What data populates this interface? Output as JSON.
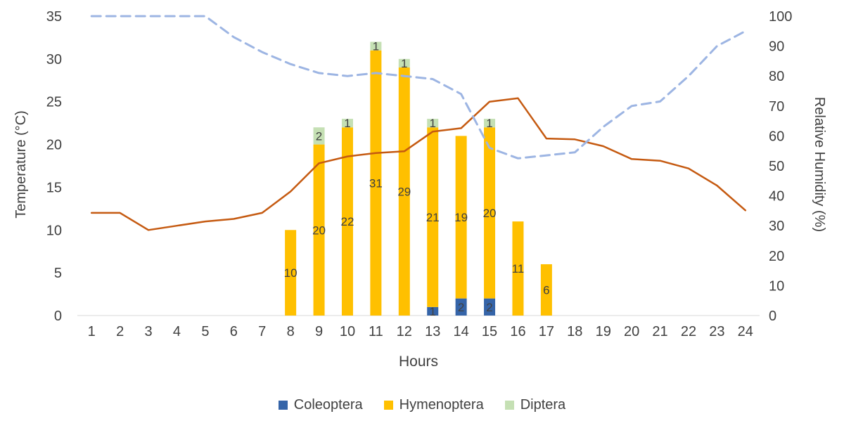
{
  "chart_data": {
    "type": "combo-stacked-bar-line",
    "x": [
      1,
      2,
      3,
      4,
      5,
      6,
      7,
      8,
      9,
      10,
      11,
      12,
      13,
      14,
      15,
      16,
      17,
      18,
      19,
      20,
      21,
      22,
      23,
      24
    ],
    "x_axis": {
      "label": "Hours"
    },
    "left_axis": {
      "label": "Temperature (°C)",
      "min": 0,
      "max": 35,
      "step": 5,
      "ticks": [
        0,
        5,
        10,
        15,
        20,
        25,
        30,
        35
      ]
    },
    "right_axis": {
      "label": "Relative Humidity (%)",
      "min": 0,
      "max": 100,
      "step": 10,
      "ticks": [
        0,
        10,
        20,
        30,
        40,
        50,
        60,
        70,
        80,
        90,
        100
      ]
    },
    "legend_position": "bottom",
    "grid": false,
    "bar_series": [
      {
        "name": "Coleoptera",
        "color": "#3564A8",
        "values": [
          0,
          0,
          0,
          0,
          0,
          0,
          0,
          0,
          0,
          0,
          0,
          0,
          1,
          2,
          2,
          0,
          0,
          0,
          0,
          0,
          0,
          0,
          0,
          0
        ]
      },
      {
        "name": "Hymenoptera",
        "color": "#FFC000",
        "values": [
          0,
          0,
          0,
          0,
          0,
          0,
          0,
          10,
          20,
          22,
          31,
          29,
          21,
          19,
          20,
          11,
          6,
          0,
          0,
          0,
          0,
          0,
          0,
          0
        ]
      },
      {
        "name": "Diptera",
        "color": "#C5E0B4",
        "values": [
          0,
          0,
          0,
          0,
          0,
          0,
          0,
          0,
          2,
          1,
          1,
          1,
          1,
          0,
          1,
          0,
          0,
          0,
          0,
          0,
          0,
          0,
          0,
          0
        ]
      }
    ],
    "line_series": [
      {
        "name": "Temperature",
        "axis": "left",
        "style": "solid",
        "color": "#C55A11",
        "width": 2.5,
        "values": [
          12,
          12,
          10,
          10.5,
          11,
          11.3,
          12,
          14.5,
          17.8,
          18.6,
          19,
          19.2,
          21.5,
          21.9,
          25,
          25.4,
          20.7,
          20.6,
          19.8,
          18.3,
          18.1,
          17.2,
          15.2,
          12.3
        ]
      },
      {
        "name": "Relative Humidity",
        "axis": "right",
        "style": "dashed",
        "color": "#9DB5E3",
        "width": 3,
        "values": [
          100,
          100,
          100,
          100,
          100,
          93,
          88,
          84,
          81,
          80,
          81,
          80,
          79,
          74,
          56,
          52.5,
          53.5,
          54.5,
          63,
          70,
          71.5,
          80,
          90,
          95
        ]
      }
    ],
    "bar_label_color": "#404040",
    "tick_color": "#404040",
    "axis_line_color": "#d9d9d9"
  }
}
